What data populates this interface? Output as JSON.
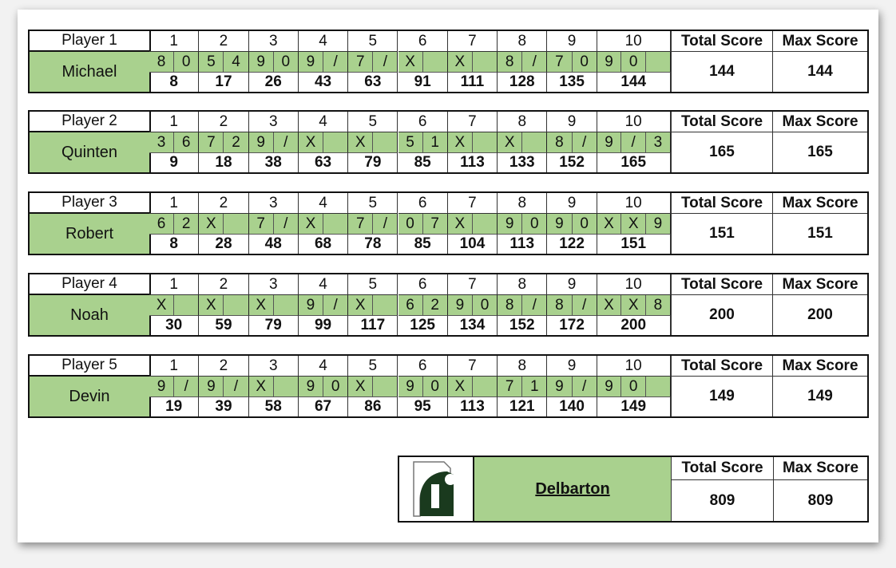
{
  "labels": {
    "total_score": "Total Score",
    "max_score": "Max Score",
    "frames": [
      "1",
      "2",
      "3",
      "4",
      "5",
      "6",
      "7",
      "8",
      "9",
      "10"
    ]
  },
  "colors": {
    "roll_fill": "#a9d18e",
    "logo": "#1a3a1e"
  },
  "players": [
    {
      "label": "Player 1",
      "name": "Michael",
      "rolls": [
        [
          "8",
          "0"
        ],
        [
          "5",
          "4"
        ],
        [
          "9",
          "0"
        ],
        [
          "9",
          "/"
        ],
        [
          "7",
          "/"
        ],
        [
          "X",
          ""
        ],
        [
          "X",
          ""
        ],
        [
          "8",
          "/"
        ],
        [
          "7",
          "0"
        ],
        [
          "9",
          "0",
          ""
        ]
      ],
      "scores": [
        "8",
        "17",
        "26",
        "43",
        "63",
        "91",
        "111",
        "128",
        "135",
        "144"
      ],
      "total": "144",
      "max": "144"
    },
    {
      "label": "Player 2",
      "name": "Quinten",
      "rolls": [
        [
          "3",
          "6"
        ],
        [
          "7",
          "2"
        ],
        [
          "9",
          "/"
        ],
        [
          "X",
          ""
        ],
        [
          "X",
          ""
        ],
        [
          "5",
          "1"
        ],
        [
          "X",
          ""
        ],
        [
          "X",
          ""
        ],
        [
          "8",
          "/"
        ],
        [
          "9",
          "/",
          "3"
        ]
      ],
      "scores": [
        "9",
        "18",
        "38",
        "63",
        "79",
        "85",
        "113",
        "133",
        "152",
        "165"
      ],
      "total": "165",
      "max": "165"
    },
    {
      "label": "Player 3",
      "name": "Robert",
      "rolls": [
        [
          "6",
          "2"
        ],
        [
          "X",
          ""
        ],
        [
          "7",
          "/"
        ],
        [
          "X",
          ""
        ],
        [
          "7",
          "/"
        ],
        [
          "0",
          "7"
        ],
        [
          "X",
          ""
        ],
        [
          "9",
          "0"
        ],
        [
          "9",
          "0"
        ],
        [
          "X",
          "X",
          "9"
        ]
      ],
      "scores": [
        "8",
        "28",
        "48",
        "68",
        "78",
        "85",
        "104",
        "113",
        "122",
        "151"
      ],
      "total": "151",
      "max": "151"
    },
    {
      "label": "Player 4",
      "name": "Noah",
      "rolls": [
        [
          "X",
          ""
        ],
        [
          "X",
          ""
        ],
        [
          "X",
          ""
        ],
        [
          "9",
          "/"
        ],
        [
          "X",
          ""
        ],
        [
          "6",
          "2"
        ],
        [
          "9",
          "0"
        ],
        [
          "8",
          "/"
        ],
        [
          "8",
          "/"
        ],
        [
          "X",
          "X",
          "8"
        ]
      ],
      "scores": [
        "30",
        "59",
        "79",
        "99",
        "117",
        "125",
        "134",
        "152",
        "172",
        "200"
      ],
      "total": "200",
      "max": "200"
    },
    {
      "label": "Player 5",
      "name": "Devin",
      "rolls": [
        [
          "9",
          "/"
        ],
        [
          "9",
          "/"
        ],
        [
          "X",
          ""
        ],
        [
          "9",
          "0"
        ],
        [
          "X",
          ""
        ],
        [
          "9",
          "0"
        ],
        [
          "X",
          ""
        ],
        [
          "7",
          "1"
        ],
        [
          "9",
          "/"
        ],
        [
          "9",
          "0",
          ""
        ]
      ],
      "scores": [
        "19",
        "39",
        "58",
        "67",
        "86",
        "95",
        "113",
        "121",
        "140",
        "149"
      ],
      "total": "149",
      "max": "149"
    }
  ],
  "team": {
    "name": "Delbarton",
    "logo_letter": "D",
    "total": "809",
    "max": "809"
  }
}
